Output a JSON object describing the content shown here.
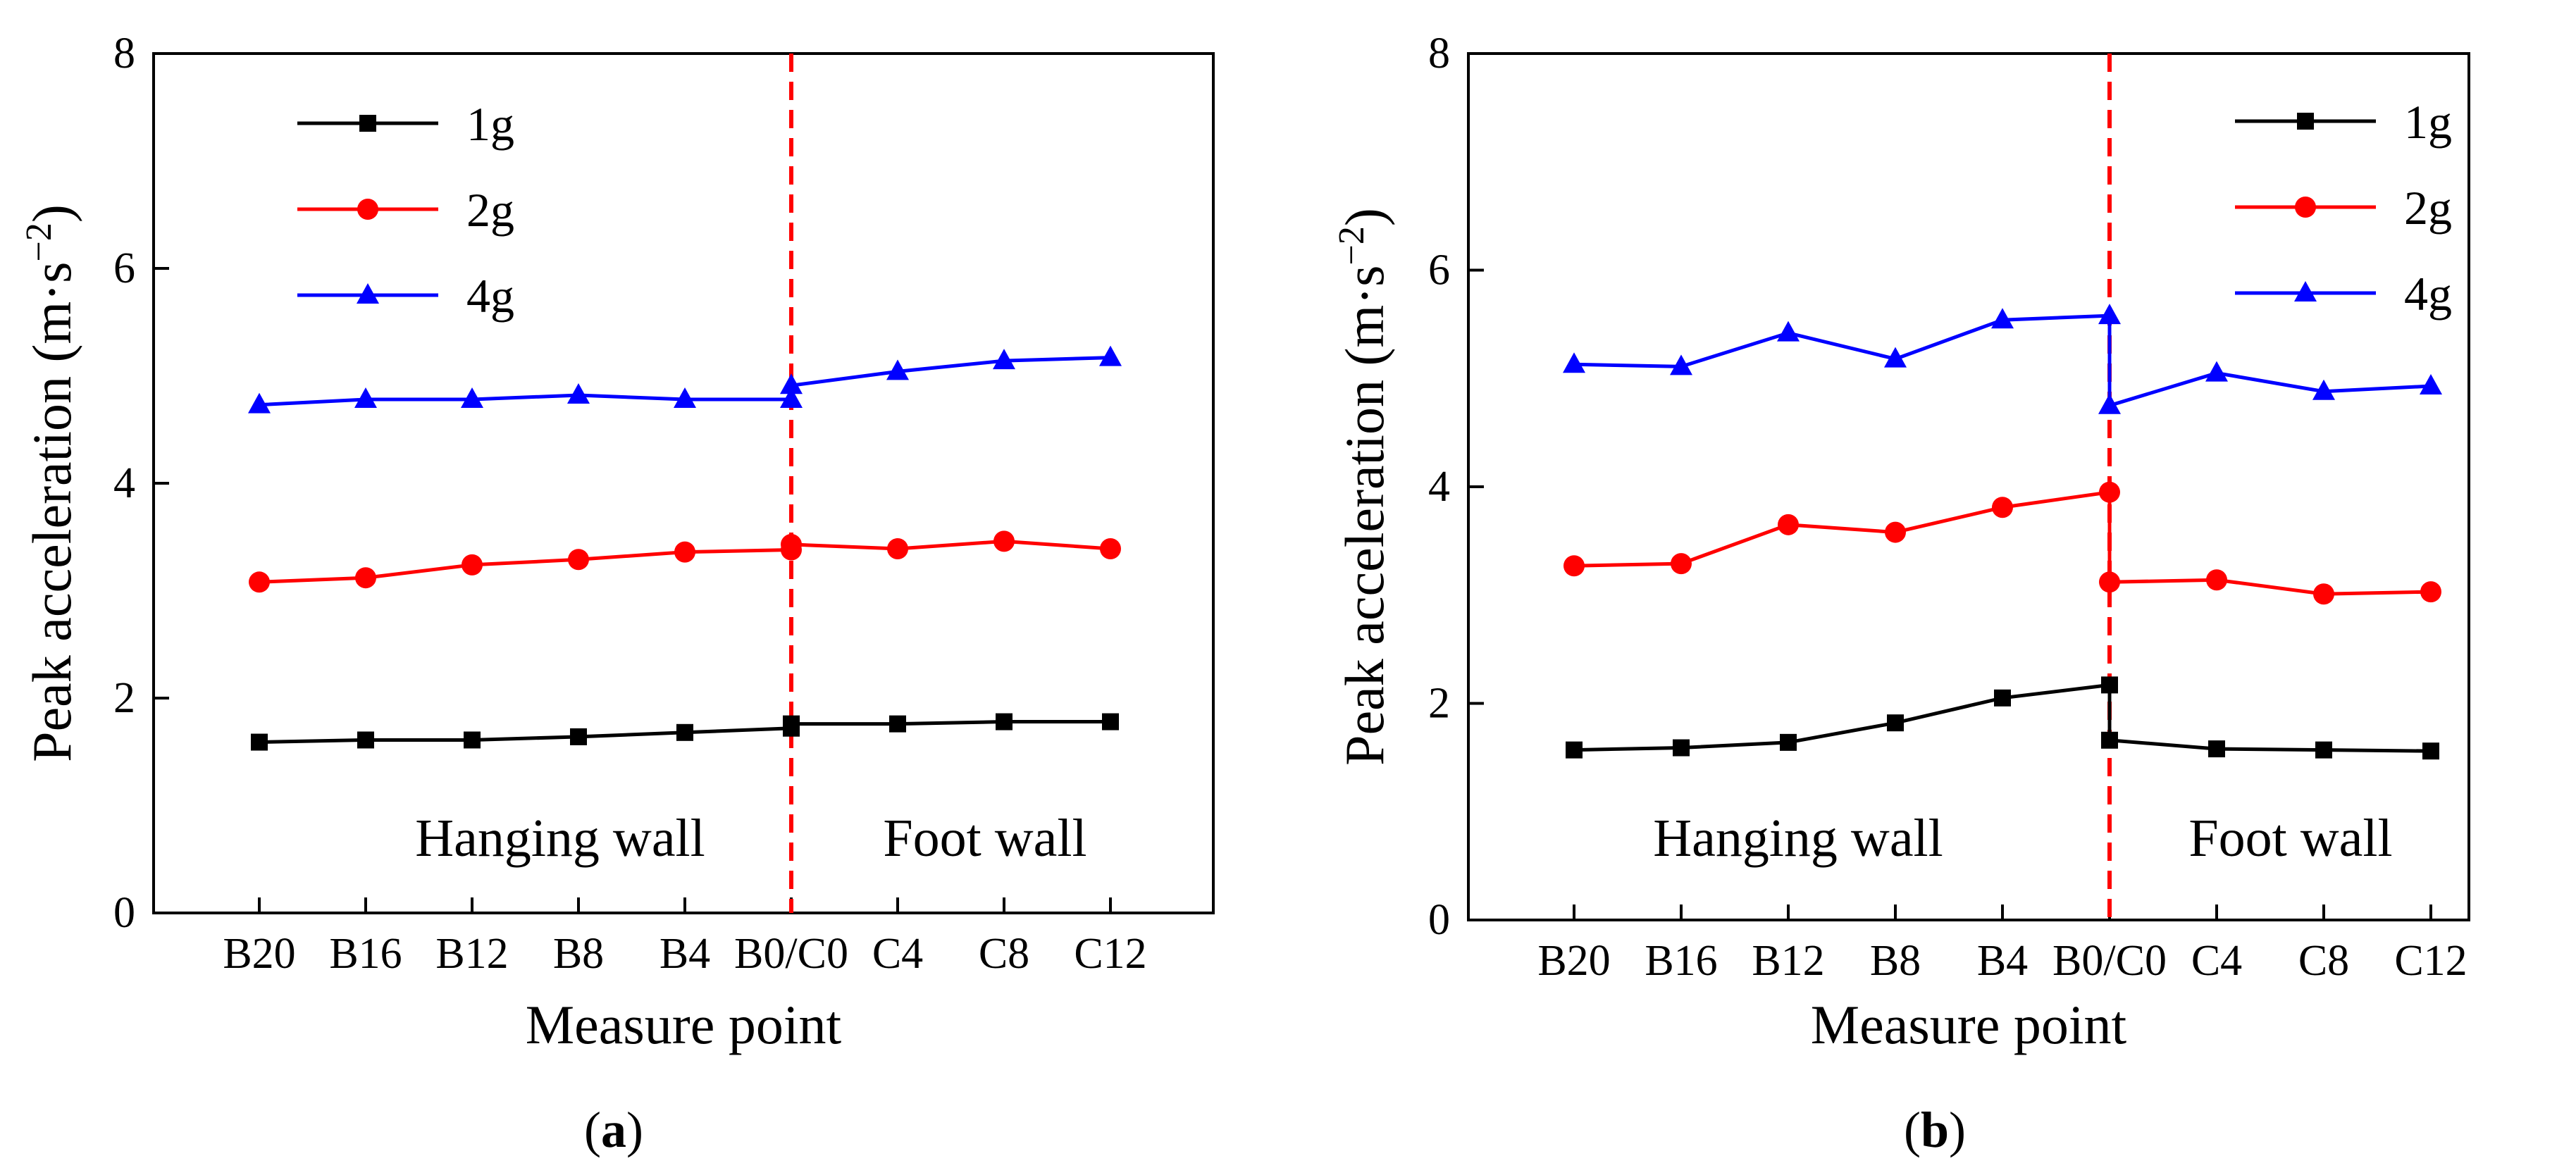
{
  "chart_data": [
    {
      "type": "line",
      "caption_letter": "a",
      "xlabel": "Measure point",
      "ylabel": "Peak acceleration",
      "ylabel_unit": "m·s",
      "ylabel_exp": "−2",
      "ylim": [
        0,
        8
      ],
      "yticks": [
        0,
        2,
        4,
        6,
        8
      ],
      "categories": [
        "B20",
        "B16",
        "B12",
        "B8",
        "B4",
        "B0/C0",
        "C4",
        "C8",
        "C12"
      ],
      "divider_category": "B0/C0",
      "region_labels": [
        "Hanging wall",
        "Foot wall"
      ],
      "legend_position": "top-left",
      "series": [
        {
          "name": "1g",
          "color": "#000000",
          "marker": "square",
          "hanging": [
            1.59,
            1.61,
            1.61,
            1.64,
            1.68,
            1.72
          ],
          "foot": [
            1.76,
            1.76,
            1.78,
            1.78
          ]
        },
        {
          "name": "2g",
          "color": "#ff0000",
          "marker": "circle",
          "hanging": [
            3.08,
            3.12,
            3.24,
            3.29,
            3.36,
            3.38
          ],
          "foot": [
            3.43,
            3.39,
            3.46,
            3.39
          ]
        },
        {
          "name": "4g",
          "color": "#0000ff",
          "marker": "triangle",
          "hanging": [
            4.73,
            4.78,
            4.78,
            4.82,
            4.78,
            4.78
          ],
          "foot": [
            4.91,
            5.04,
            5.14,
            5.17
          ]
        }
      ]
    },
    {
      "type": "line",
      "caption_letter": "b",
      "xlabel": "Measure point",
      "ylabel": "Peak acceleration",
      "ylabel_unit": "m·s",
      "ylabel_exp": "−2",
      "ylim": [
        0,
        8
      ],
      "yticks": [
        0,
        2,
        4,
        6,
        8
      ],
      "categories": [
        "B20",
        "B16",
        "B12",
        "B8",
        "B4",
        "B0/C0",
        "C4",
        "C8",
        "C12"
      ],
      "divider_category": "B0/C0",
      "region_labels": [
        "Hanging wall",
        "Foot wall"
      ],
      "legend_position": "top-right",
      "series": [
        {
          "name": "1g",
          "color": "#000000",
          "marker": "square",
          "hanging": [
            1.57,
            1.59,
            1.64,
            1.82,
            2.05,
            2.17
          ],
          "foot": [
            1.66,
            1.58,
            1.57,
            1.56
          ]
        },
        {
          "name": "2g",
          "color": "#ff0000",
          "marker": "circle",
          "hanging": [
            3.27,
            3.29,
            3.65,
            3.58,
            3.81,
            3.95
          ],
          "foot": [
            3.12,
            3.14,
            3.01,
            3.03
          ]
        },
        {
          "name": "4g",
          "color": "#0000ff",
          "marker": "triangle",
          "hanging": [
            5.13,
            5.11,
            5.42,
            5.18,
            5.54,
            5.58
          ],
          "foot": [
            4.75,
            5.05,
            4.88,
            4.93
          ]
        }
      ]
    }
  ]
}
